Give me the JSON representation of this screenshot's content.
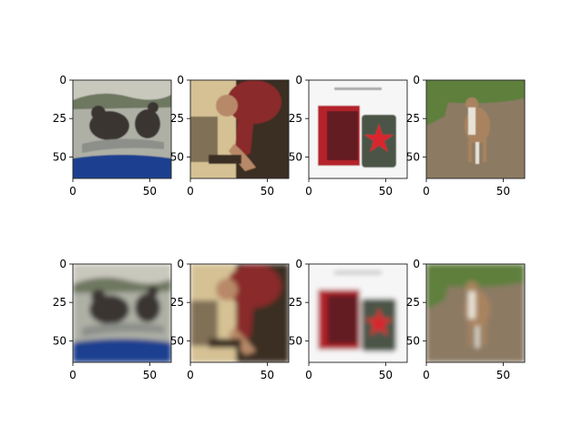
{
  "chart_data": {
    "type": "image_grid",
    "layout": {
      "rows": 2,
      "cols": 4
    },
    "xlim": [
      0,
      64
    ],
    "ylim": [
      64,
      0
    ],
    "x_ticks": [
      0,
      50
    ],
    "y_ticks": [
      0,
      25,
      50
    ],
    "panels": [
      {
        "row": 1,
        "col": 1,
        "content": "two men with a large fish in a blue tub, lake background",
        "quality": "original"
      },
      {
        "row": 1,
        "col": 2,
        "content": "man in red shirt leaning over a table indoors",
        "quality": "original"
      },
      {
        "row": 1,
        "col": 3,
        "content": "perfume product: red box and green bottle with red star",
        "quality": "original"
      },
      {
        "row": 1,
        "col": 4,
        "content": "brown and white dog standing on dirt path with foliage",
        "quality": "original"
      },
      {
        "row": 2,
        "col": 1,
        "content": "blurred reconstruction: two men with fish in blue tub",
        "quality": "reconstruction"
      },
      {
        "row": 2,
        "col": 2,
        "content": "blurred reconstruction: man leaning over table",
        "quality": "reconstruction"
      },
      {
        "row": 2,
        "col": 3,
        "content": "blurred reconstruction: perfume box and bottle",
        "quality": "reconstruction"
      },
      {
        "row": 2,
        "col": 4,
        "content": "blurred reconstruction: dog on dirt path",
        "quality": "reconstruction"
      }
    ]
  },
  "colors": {
    "axis": "#000000",
    "background": "#ffffff"
  },
  "panel_art": {
    "p11_sky": "#c9c8bd",
    "p11_hills": "#6e7760",
    "p11_water": "#aeb0a5",
    "p11_tub": "#1f3f8f",
    "p11_fish": "#8c8f8a",
    "p11_man": "#3a3633",
    "p12_wall": "#3b2d22",
    "p12_shirt": "#8a2a2a",
    "p12_light": "#f1dca8",
    "p12_skin": "#b88968",
    "p13_bg": "#f6f6f6",
    "p13_box": "#b5202a",
    "p13_box_dark": "#1d1d1d",
    "p13_bottle": "#4b5446",
    "p13_star": "#d8262e",
    "p14_grass": "#5f7f3e",
    "p14_dirt": "#8c7a63",
    "p14_dog": "#a9835f",
    "p14_dog_white": "#e8e2d6"
  }
}
